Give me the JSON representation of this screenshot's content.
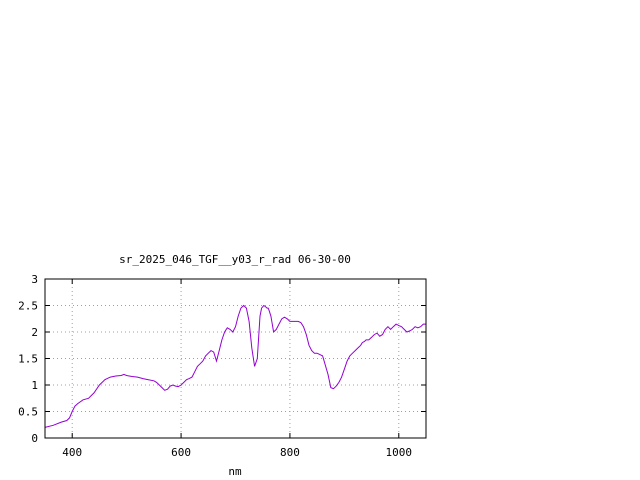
{
  "chart_data": {
    "type": "line",
    "title": "sr_2025_046_TGF__y03_r_rad 06-30-00",
    "xlabel": "nm",
    "ylabel": "",
    "xlim": [
      350,
      1050
    ],
    "ylim": [
      0,
      3
    ],
    "xticks": [
      400,
      600,
      800,
      1000
    ],
    "yticks": [
      "0",
      "0.5",
      "1",
      "1.5",
      "2",
      "2.5",
      "3"
    ],
    "grid": true,
    "series": [
      {
        "color": "#9400d3",
        "x": [
          350,
          365,
          380,
          390,
          395,
          400,
          405,
          410,
          420,
          430,
          440,
          450,
          460,
          470,
          480,
          490,
          495,
          500,
          510,
          520,
          530,
          540,
          550,
          555,
          560,
          565,
          570,
          575,
          580,
          585,
          590,
          595,
          600,
          605,
          610,
          615,
          620,
          625,
          630,
          635,
          640,
          645,
          650,
          655,
          660,
          665,
          670,
          675,
          680,
          685,
          690,
          695,
          700,
          705,
          710,
          715,
          720,
          725,
          730,
          735,
          740,
          745,
          748,
          752,
          755,
          758,
          760,
          762,
          765,
          770,
          775,
          780,
          785,
          790,
          795,
          800,
          805,
          810,
          815,
          820,
          825,
          830,
          835,
          840,
          845,
          850,
          860,
          870,
          875,
          880,
          885,
          890,
          895,
          900,
          905,
          910,
          915,
          920,
          925,
          930,
          933,
          937,
          940,
          945,
          950,
          955,
          960,
          965,
          970,
          975,
          980,
          985,
          990,
          995,
          1000,
          1005,
          1010,
          1015,
          1020,
          1025,
          1030,
          1035,
          1040,
          1045,
          1050
        ],
        "y": [
          0.2,
          0.24,
          0.3,
          0.33,
          0.38,
          0.5,
          0.6,
          0.65,
          0.72,
          0.75,
          0.85,
          1.0,
          1.1,
          1.15,
          1.17,
          1.18,
          1.2,
          1.18,
          1.16,
          1.15,
          1.12,
          1.1,
          1.08,
          1.05,
          1.0,
          0.95,
          0.9,
          0.92,
          0.98,
          1.0,
          0.98,
          0.97,
          1.0,
          1.05,
          1.1,
          1.12,
          1.15,
          1.25,
          1.35,
          1.4,
          1.45,
          1.55,
          1.6,
          1.65,
          1.62,
          1.45,
          1.65,
          1.85,
          2.0,
          2.08,
          2.05,
          2.0,
          2.1,
          2.3,
          2.45,
          2.5,
          2.45,
          2.2,
          1.7,
          1.35,
          1.5,
          2.3,
          2.45,
          2.5,
          2.48,
          2.45,
          2.45,
          2.4,
          2.3,
          2.0,
          2.05,
          2.15,
          2.25,
          2.28,
          2.25,
          2.2,
          2.2,
          2.2,
          2.2,
          2.18,
          2.1,
          1.95,
          1.75,
          1.65,
          1.6,
          1.6,
          1.55,
          1.2,
          0.95,
          0.93,
          0.98,
          1.05,
          1.15,
          1.3,
          1.45,
          1.55,
          1.6,
          1.65,
          1.7,
          1.75,
          1.8,
          1.82,
          1.85,
          1.85,
          1.9,
          1.95,
          1.98,
          1.92,
          1.95,
          2.05,
          2.1,
          2.05,
          2.1,
          2.15,
          2.12,
          2.1,
          2.05,
          2.0,
          2.02,
          2.05,
          2.1,
          2.08,
          2.1,
          2.15,
          2.15
        ]
      }
    ]
  }
}
